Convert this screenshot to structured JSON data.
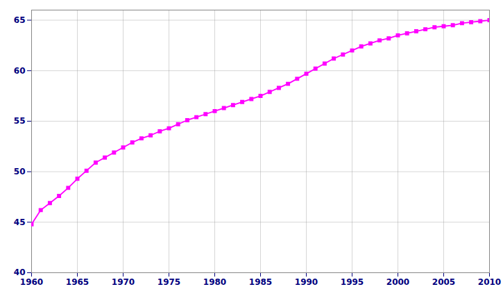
{
  "chart_data": {
    "type": "line",
    "x": [
      1960,
      1961,
      1962,
      1963,
      1964,
      1965,
      1966,
      1967,
      1968,
      1969,
      1970,
      1971,
      1972,
      1973,
      1974,
      1975,
      1976,
      1977,
      1978,
      1979,
      1980,
      1981,
      1982,
      1983,
      1984,
      1985,
      1986,
      1987,
      1988,
      1989,
      1990,
      1991,
      1992,
      1993,
      1994,
      1995,
      1996,
      1997,
      1998,
      1999,
      2000,
      2001,
      2002,
      2003,
      2004,
      2005,
      2006,
      2007,
      2008,
      2009,
      2010
    ],
    "values": [
      44.8,
      46.2,
      46.9,
      47.6,
      48.4,
      49.3,
      50.1,
      50.9,
      51.4,
      51.9,
      52.4,
      52.9,
      53.3,
      53.6,
      54.0,
      54.3,
      54.7,
      55.1,
      55.4,
      55.7,
      56.0,
      56.3,
      56.6,
      56.9,
      57.2,
      57.5,
      57.9,
      58.3,
      58.7,
      59.2,
      59.7,
      60.2,
      60.7,
      61.2,
      61.6,
      62.0,
      62.4,
      62.7,
      63.0,
      63.2,
      63.5,
      63.7,
      63.9,
      64.1,
      64.3,
      64.4,
      64.5,
      64.7,
      64.8,
      64.9,
      65.0
    ],
    "color": "#FF00FF",
    "marker": "square",
    "xlim": [
      1960,
      2010
    ],
    "ylim": [
      40,
      66
    ],
    "xticks": [
      1960,
      1965,
      1970,
      1975,
      1980,
      1985,
      1990,
      1995,
      2000,
      2005,
      2010
    ],
    "yticks": [
      40,
      45,
      50,
      55,
      60,
      65
    ],
    "grid": true
  }
}
